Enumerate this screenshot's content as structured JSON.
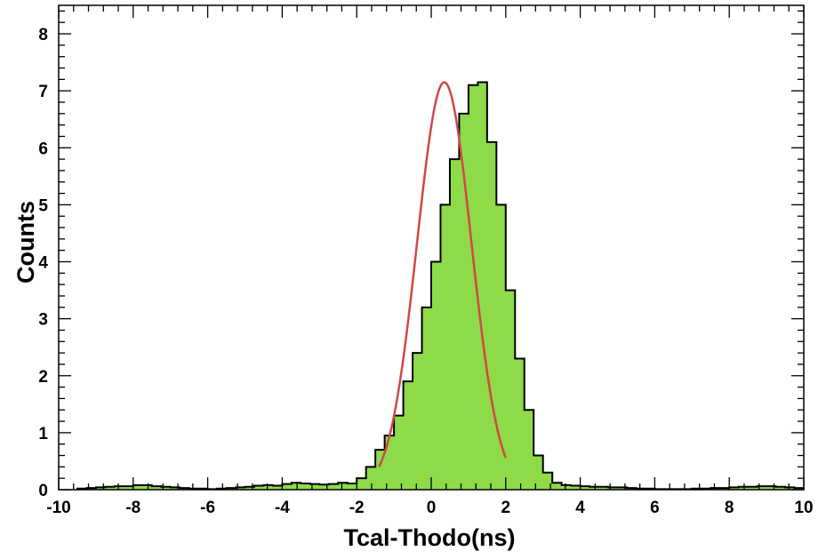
{
  "chart_data": {
    "type": "histogram",
    "xlabel": "Tcal-Thodo(ns)",
    "ylabel": "Counts",
    "xlim": [
      -10,
      10
    ],
    "ylim": [
      0,
      8.5
    ],
    "x_ticks": [
      -10,
      -8,
      -6,
      -4,
      -2,
      0,
      2,
      4,
      6,
      8,
      10
    ],
    "x_tick_labels": [
      "-10",
      "-8",
      "-6",
      "-4",
      "-2",
      "0",
      "2",
      "4",
      "6",
      "8",
      "10"
    ],
    "y_ticks": [
      0,
      1,
      2,
      3,
      4,
      5,
      6,
      7,
      8
    ],
    "y_tick_labels": [
      "0",
      "1",
      "2",
      "3",
      "4",
      "5",
      "6",
      "7",
      "8"
    ],
    "bin_width": 0.25,
    "bins_start": -9.5,
    "counts": [
      0.02,
      0.03,
      0.04,
      0.05,
      0.06,
      0.06,
      0.08,
      0.08,
      0.06,
      0.05,
      0.04,
      0.03,
      0.02,
      0.02,
      0.01,
      0.02,
      0.03,
      0.04,
      0.05,
      0.07,
      0.08,
      0.07,
      0.1,
      0.12,
      0.11,
      0.1,
      0.09,
      0.1,
      0.12,
      0.11,
      0.2,
      0.4,
      0.7,
      0.95,
      1.3,
      1.9,
      2.4,
      3.2,
      4.0,
      5.0,
      5.8,
      6.6,
      7.1,
      7.15,
      6.1,
      5.0,
      3.5,
      2.3,
      1.4,
      0.6,
      0.3,
      0.12,
      0.08,
      0.07,
      0.06,
      0.05,
      0.05,
      0.04,
      0.04,
      0.03,
      0.02,
      0.02,
      0.01,
      0.01,
      0.01,
      0.01,
      0.02,
      0.02,
      0.03,
      0.03,
      0.04,
      0.05,
      0.05,
      0.06,
      0.06,
      0.05,
      0.04,
      0.03
    ],
    "fill_color": "#8edb4a",
    "line_color": "#000000",
    "fit": {
      "function": "gaussian",
      "amplitude": 7.15,
      "mean": 0.35,
      "sigma": 0.73,
      "range": [
        -1.4,
        2.0
      ],
      "color": "#d04848"
    },
    "grid": false
  }
}
